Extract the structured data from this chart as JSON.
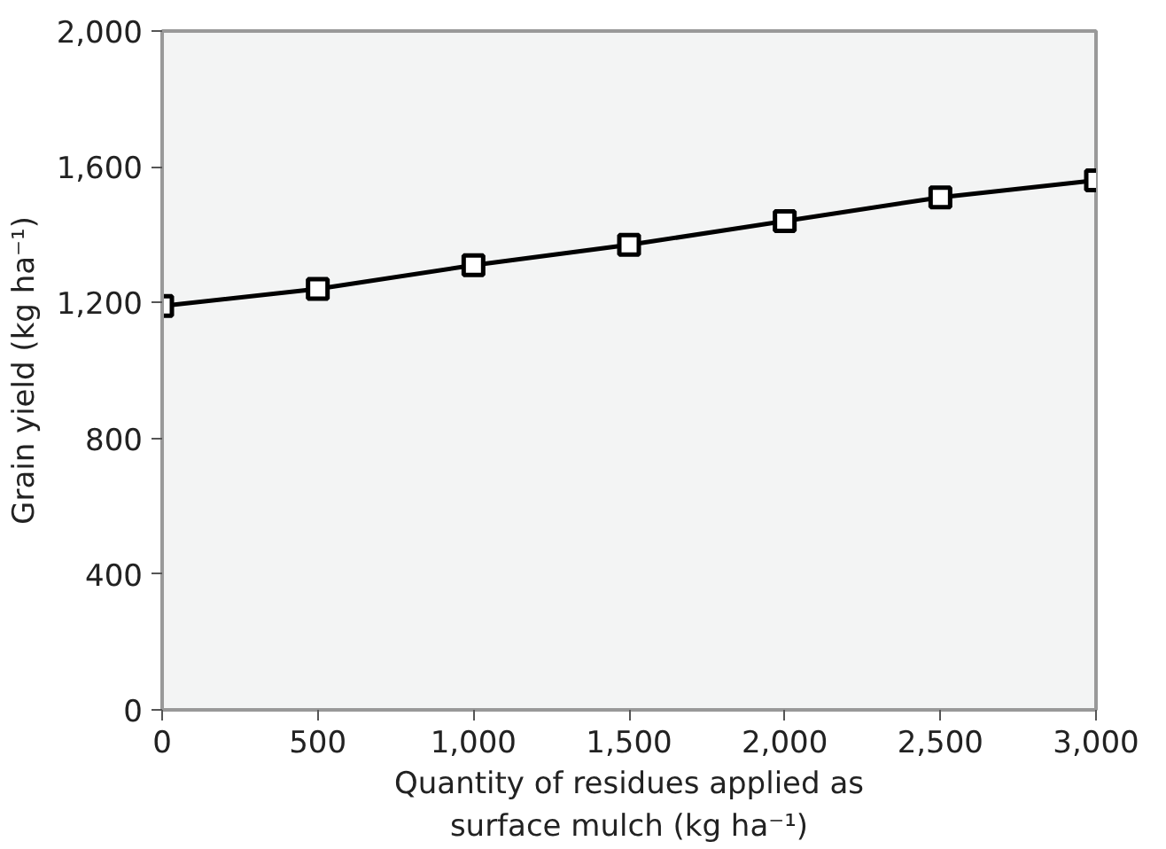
{
  "chart_data": {
    "type": "line",
    "xlabel": "Quantity of residues applied as surface mulch (kg ha⁻¹)",
    "ylabel": "Grain yield (kg ha⁻¹)",
    "x": [
      0,
      500,
      1000,
      1500,
      2000,
      2500,
      3000
    ],
    "series": [
      {
        "color": "#000000",
        "values": [
          1190,
          1240,
          1310,
          1370,
          1440,
          1510,
          1560
        ]
      }
    ],
    "xlim": [
      0,
      3000
    ],
    "xticks": [
      {
        "value": 0,
        "label": "0"
      },
      {
        "value": 500,
        "label": "500"
      },
      {
        "value": 1000,
        "label": "1,000"
      },
      {
        "value": 1500,
        "label": "1,500"
      },
      {
        "value": 2000,
        "label": "2,000"
      },
      {
        "value": 2500,
        "label": "2,500"
      },
      {
        "value": 3000,
        "label": "3,000"
      }
    ],
    "ylim": [
      0,
      2000
    ],
    "yticks": [
      {
        "value": 0,
        "label": "0"
      },
      {
        "value": 400,
        "label": "400"
      },
      {
        "value": 800,
        "label": "800"
      },
      {
        "value": 1200,
        "label": "1,200"
      },
      {
        "value": 1600,
        "label": "1,600"
      },
      {
        "value": 2000,
        "label": "2,000"
      }
    ],
    "grid": false,
    "marker": "square",
    "line_style": "solid"
  }
}
